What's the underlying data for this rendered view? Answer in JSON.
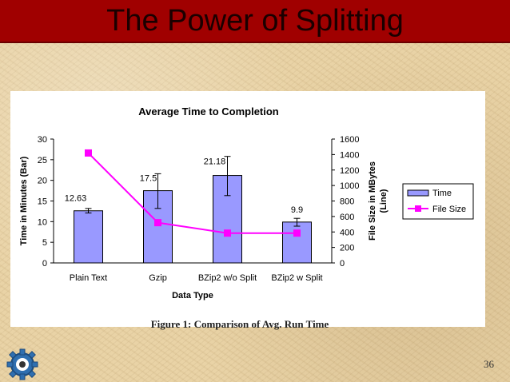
{
  "slide": {
    "title": "The Power of Splitting",
    "caption": "Figure 1: Comparison of Avg. Run Time",
    "page_number": "36",
    "logo_icon": "gear-logo-icon"
  },
  "colors": {
    "title_bar": "#a00000",
    "bar_fill": "#9999ff",
    "line_color": "#ff00ff",
    "background": "#e9d3a6"
  },
  "chart_data": {
    "type": "bar",
    "title": "Average Time to Completion",
    "xlabel": "Data Type",
    "ylabel": "Time in Minutes (Bar)",
    "y2label": "File Size in MBytes (Line)",
    "categories": [
      "Plain Text",
      "Gzip",
      "BZip2 w/o Split",
      "BZip2 w Split"
    ],
    "ylim": [
      0,
      30
    ],
    "y2lim": [
      0,
      1600
    ],
    "yticks": [
      "0",
      "5",
      "10",
      "15",
      "20",
      "25",
      "30"
    ],
    "y2ticks": [
      "0",
      "200",
      "400",
      "600",
      "800",
      "1000",
      "1200",
      "1400",
      "1600"
    ],
    "legend_position": "right",
    "series": [
      {
        "name": "Time",
        "kind": "bar",
        "axis": "left",
        "values": [
          12.63,
          17.5,
          21.18,
          9.9
        ],
        "labels": [
          "12.63",
          "17.5",
          "21.18",
          "9.9"
        ],
        "error_low": [
          12.1,
          13.2,
          16.3,
          8.9
        ],
        "error_high": [
          13.2,
          21.6,
          25.8,
          10.8
        ]
      },
      {
        "name": "File Size",
        "kind": "line",
        "axis": "right",
        "values": [
          1420,
          520,
          385,
          385
        ]
      }
    ]
  }
}
